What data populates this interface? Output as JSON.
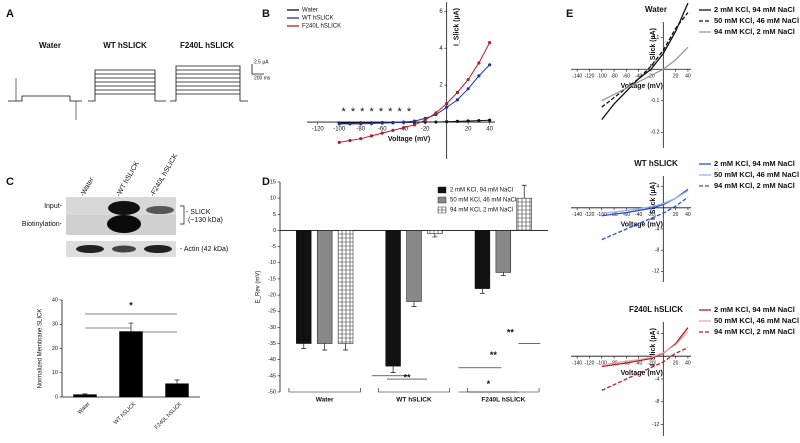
{
  "figure": {
    "panels": [
      "A",
      "B",
      "C",
      "D",
      "E"
    ],
    "traces": {
      "groups": [
        "Water",
        "WT hSLICK",
        "F240L hSLICK"
      ],
      "scale_current": "2.5 µA",
      "scale_time": "200 ms"
    },
    "blot": {
      "lanes": [
        "-Water",
        "-WT hSLICK",
        "-F240L hSLICK"
      ],
      "rows": [
        "Input-",
        "Biotinylation-"
      ],
      "bands": [
        "- SLICK",
        "(~130 kDa)",
        "- Actin (42 kDa)"
      ]
    }
  },
  "chart_data": [
    {
      "type": "line",
      "xlabel": "Voltage (mV)",
      "ylabel": "I_Slick (µA)",
      "x": [
        -100,
        -90,
        -80,
        -70,
        -60,
        -50,
        -40,
        -30,
        -20,
        -10,
        0,
        10,
        20,
        30,
        40
      ],
      "xlim": [
        -130,
        45
      ],
      "xticks": [
        -120,
        -100,
        -80,
        -60,
        -40,
        -20,
        20,
        40
      ],
      "ylim": [
        -2,
        6.5
      ],
      "yticks": [
        2,
        4,
        6
      ],
      "markers": true,
      "legend": "upper left",
      "annotations": [
        "* * * * * * * *"
      ],
      "series": [
        {
          "name": "Water",
          "color": "#111111",
          "values": [
            -0.05,
            -0.05,
            -0.04,
            -0.04,
            -0.03,
            -0.03,
            -0.02,
            -0.01,
            0,
            0,
            0.02,
            0.04,
            0.06,
            0.08,
            0.1
          ]
        },
        {
          "name": "WT hSLICK",
          "color": "#2233aa",
          "values": [
            -0.1,
            -0.1,
            -0.1,
            -0.08,
            -0.06,
            -0.04,
            0,
            0.05,
            0.2,
            0.4,
            0.8,
            1.2,
            1.8,
            2.5,
            3.1
          ]
        },
        {
          "name": "F240L hSLICK",
          "color": "#b0202a",
          "values": [
            -1.1,
            -1.0,
            -0.9,
            -0.75,
            -0.6,
            -0.45,
            -0.3,
            -0.15,
            0.1,
            0.5,
            1.0,
            1.6,
            2.3,
            3.2,
            4.3
          ]
        }
      ]
    },
    {
      "type": "bar",
      "ylabel": "Normalized Membrane SLICK",
      "categories": [
        "Water",
        "WT hSLICK",
        "F240L hSLICK"
      ],
      "values": [
        1,
        27,
        5.5
      ],
      "errors": [
        0.3,
        3.5,
        1.5
      ],
      "color": "#000000",
      "ylim": [
        0,
        40
      ],
      "yticks": [
        0,
        10,
        20,
        30,
        40
      ],
      "annotations": [
        "*"
      ]
    },
    {
      "type": "bar",
      "ylabel": "E_Rev (mV)",
      "categories": [
        "Water",
        "WT hSLICK",
        "F240L hSLICK"
      ],
      "ylim": [
        -50,
        15
      ],
      "yticks": [
        -50,
        -45,
        -40,
        -35,
        -30,
        -25,
        -20,
        -15,
        -10,
        -5,
        0,
        5,
        10,
        15
      ],
      "legend": "upper right",
      "annotations": [
        "**",
        "**",
        "**",
        "*"
      ],
      "series": [
        {
          "name": "2 mM KCl, 94 mM NaCl",
          "color": "#111111",
          "values": [
            -35,
            -42,
            -18
          ],
          "errors": [
            1.5,
            2,
            1.5
          ]
        },
        {
          "name": "50 mM KCl, 46 mM NaCl",
          "color": "#888888",
          "values": [
            -35,
            -22,
            -13
          ],
          "errors": [
            2,
            1.5,
            1
          ]
        },
        {
          "name": "94 mM KCl, 2 mM NaCl",
          "color": "#ffffff",
          "pattern": "hatch",
          "values": [
            -35,
            -1,
            10
          ],
          "errors": [
            2,
            1,
            4
          ]
        }
      ]
    },
    {
      "type": "line",
      "title": "Water",
      "xlabel": "Voltage (mV)",
      "ylabel": "I_Slick (µA)",
      "x": [
        -100,
        -80,
        -60,
        -40,
        -20,
        0,
        20,
        40
      ],
      "xlim": [
        -150,
        45
      ],
      "xticks": [
        -140,
        -120,
        -100,
        -80,
        -60,
        -40,
        -20,
        20,
        40
      ],
      "ylim": [
        -0.25,
        0.15
      ],
      "yticks": [
        0.1,
        -0.1,
        -0.2
      ],
      "legend": "right",
      "series": [
        {
          "name": "2 mM KCl, 94 mM NaCl",
          "color": "#111111",
          "style": "solid",
          "values": [
            -0.16,
            -0.11,
            -0.07,
            -0.03,
            0,
            0.05,
            0.12,
            0.21
          ]
        },
        {
          "name": "50 mM KCl, 46 mM NaCl",
          "color": "#111111",
          "style": "dashed",
          "values": [
            -0.12,
            -0.09,
            -0.06,
            -0.03,
            0.01,
            0.06,
            0.13,
            0.18
          ]
        },
        {
          "name": "94 mM KCl, 2 mM NaCl",
          "color": "#999999",
          "style": "solid",
          "values": [
            -0.1,
            -0.08,
            -0.06,
            -0.04,
            -0.02,
            0,
            0.03,
            0.07
          ]
        }
      ]
    },
    {
      "type": "line",
      "title": "WT hSLICK",
      "xlabel": "Voltage (mV)",
      "ylabel": "I_Slick (µA)",
      "x": [
        -100,
        -80,
        -60,
        -40,
        -20,
        0,
        20,
        40
      ],
      "xlim": [
        -150,
        45
      ],
      "xticks": [
        -140,
        -120,
        -100,
        -80,
        -60,
        -40,
        -20,
        20,
        40
      ],
      "ylim": [
        -14,
        6
      ],
      "yticks": [
        4,
        -4,
        -8,
        -12
      ],
      "legend": "right",
      "series": [
        {
          "name": "2 mM KCl, 94 mM NaCl",
          "color": "#2b4fd8",
          "style": "solid",
          "values": [
            -1.5,
            -1.2,
            -0.9,
            -0.5,
            -0.1,
            0.6,
            1.8,
            3.5
          ]
        },
        {
          "name": "50 mM KCl, 46 mM NaCl",
          "color": "#9fb4ee",
          "style": "solid",
          "values": [
            -1.0,
            -0.8,
            -0.5,
            -0.2,
            0.2,
            0.8,
            1.8,
            3.2
          ]
        },
        {
          "name": "94 mM KCl, 2 mM NaCl",
          "color": "#2b4fd8",
          "style": "dashed",
          "values": [
            -6,
            -5,
            -4,
            -3,
            -2,
            -1,
            0.3,
            2
          ]
        }
      ]
    },
    {
      "type": "line",
      "title": "F240L hSLICK",
      "xlabel": "Voltage (mV)",
      "ylabel": "I_Slick (µA)",
      "x": [
        -100,
        -80,
        -60,
        -40,
        -20,
        0,
        20,
        40
      ],
      "xlim": [
        -150,
        45
      ],
      "xticks": [
        -140,
        -120,
        -100,
        -80,
        -60,
        -40,
        -20,
        20,
        40
      ],
      "ylim": [
        -14,
        6
      ],
      "yticks": [
        4,
        -4,
        -8,
        -12
      ],
      "legend": "right",
      "series": [
        {
          "name": "2 mM KCl, 94 mM NaCl",
          "color": "#b01c24",
          "style": "solid",
          "values": [
            -1.8,
            -1.5,
            -1.2,
            -0.8,
            -0.4,
            0.5,
            2.2,
            5
          ]
        },
        {
          "name": "50 mM KCl, 46 mM NaCl",
          "color": "#e8a8a8",
          "style": "solid",
          "values": [
            -1.5,
            -1.2,
            -0.9,
            -0.6,
            -0.2,
            0.6,
            2.0,
            4.3
          ]
        },
        {
          "name": "94 mM KCl, 2 mM NaCl",
          "color": "#b01c24",
          "style": "dashed",
          "values": [
            -6,
            -5,
            -4,
            -3,
            -2,
            -1,
            0.5,
            1.5
          ]
        }
      ]
    }
  ]
}
